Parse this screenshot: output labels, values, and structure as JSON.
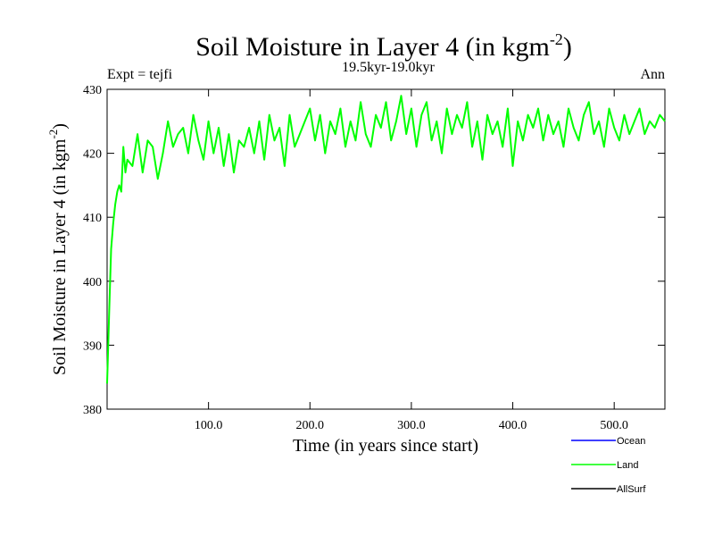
{
  "chart_data": {
    "type": "line",
    "title": "Soil Moisture in Layer 4 (in kgm",
    "title_superscript": "-2",
    "title_close": ")",
    "subtitle_left": "Expt = tejfi",
    "subtitle_center": "19.5kyr-19.0kyr",
    "subtitle_right": "Ann",
    "xlabel": "Time (in years since start)",
    "ylabel": "Soil Moisture in Layer 4 (in kgm",
    "ylabel_superscript": "-2",
    "ylabel_close": ")",
    "xlim": [
      0,
      550
    ],
    "ylim": [
      380,
      430
    ],
    "xticks": [
      100,
      200,
      300,
      400,
      500
    ],
    "xtick_labels": [
      "100.0",
      "200.0",
      "300.0",
      "400.0",
      "500.0"
    ],
    "yticks": [
      380,
      390,
      400,
      410,
      420,
      430
    ],
    "ytick_labels": [
      "380",
      "390",
      "400",
      "410",
      "420",
      "430"
    ],
    "grid": false,
    "legend_position": "bottom-right",
    "series": [
      {
        "name": "Ocean",
        "color": "#0000ff",
        "values": []
      },
      {
        "name": "Land",
        "color": "#00ff00",
        "x": [
          0,
          2,
          4,
          6,
          8,
          10,
          12,
          14,
          16,
          18,
          20,
          25,
          30,
          35,
          40,
          45,
          50,
          55,
          60,
          65,
          70,
          75,
          80,
          85,
          90,
          95,
          100,
          105,
          110,
          115,
          120,
          125,
          130,
          135,
          140,
          145,
          150,
          155,
          160,
          165,
          170,
          175,
          180,
          185,
          190,
          195,
          200,
          205,
          210,
          215,
          220,
          225,
          230,
          235,
          240,
          245,
          250,
          255,
          260,
          265,
          270,
          275,
          280,
          285,
          290,
          295,
          300,
          305,
          310,
          315,
          320,
          325,
          330,
          335,
          340,
          345,
          350,
          355,
          360,
          365,
          370,
          375,
          380,
          385,
          390,
          395,
          400,
          405,
          410,
          415,
          420,
          425,
          430,
          435,
          440,
          445,
          450,
          455,
          460,
          465,
          470,
          475,
          480,
          485,
          490,
          495,
          500,
          505,
          510,
          515,
          520,
          525,
          530,
          535,
          540,
          545,
          550
        ],
        "values": [
          384,
          395,
          405,
          409,
          412,
          414,
          415,
          414,
          421,
          417,
          419,
          418,
          423,
          417,
          422,
          421,
          416,
          420,
          425,
          421,
          423,
          424,
          420,
          426,
          422,
          419,
          425,
          420,
          424,
          418,
          423,
          417,
          422,
          421,
          424,
          420,
          425,
          419,
          426,
          422,
          424,
          418,
          426,
          421,
          423,
          425,
          427,
          422,
          426,
          420,
          425,
          423,
          427,
          421,
          425,
          422,
          428,
          423,
          421,
          426,
          424,
          428,
          422,
          425,
          429,
          423,
          427,
          421,
          426,
          428,
          422,
          425,
          420,
          427,
          423,
          426,
          424,
          428,
          421,
          425,
          419,
          426,
          423,
          425,
          421,
          427,
          418,
          425,
          422,
          426,
          424,
          427,
          422,
          426,
          423,
          425,
          421,
          427,
          424,
          422,
          426,
          428,
          423,
          425,
          421,
          427,
          424,
          422,
          426,
          423,
          425,
          427,
          423,
          425,
          424,
          426,
          425
        ]
      },
      {
        "name": "AllSurf",
        "color": "#000000",
        "values": []
      }
    ]
  }
}
